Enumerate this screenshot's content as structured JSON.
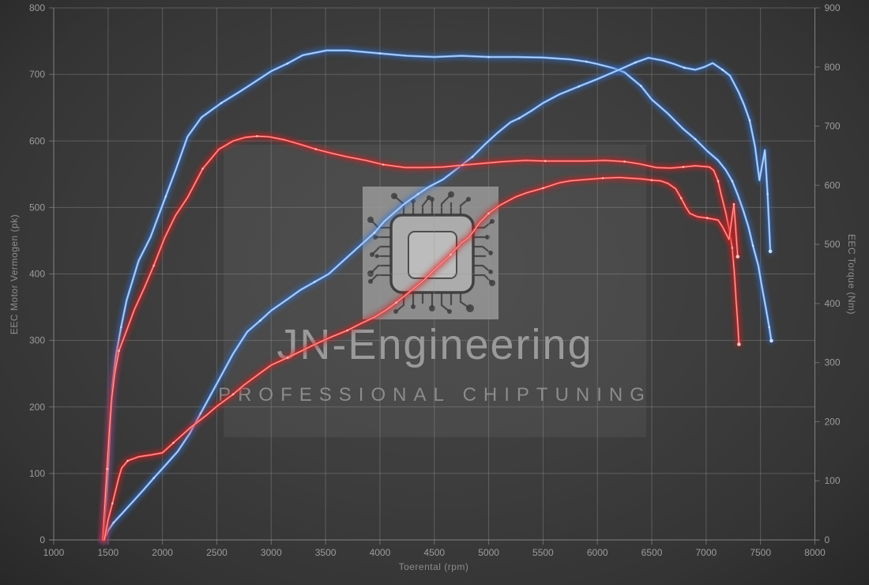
{
  "colors": {
    "background": "#3e3e3e",
    "grid": "#9a9a9a",
    "axis_text": "#9c9c9c",
    "axis_title": "#8d8d8d",
    "blue": "#2f6fd0",
    "blue_core": "#7db1f2",
    "blue_light": "#cfe2ff",
    "red": "#d81f1f",
    "red_core": "#f04040",
    "red_light": "#ffc4c4"
  },
  "watermark": {
    "title": "JN-Engineering",
    "subtitle": "PROFESSIONAL CHIPTUNING",
    "icon": "chip-icon"
  },
  "axes": {
    "x": {
      "title": "Toerental (rpm)",
      "min": 1000,
      "max": 8000,
      "tick_labels": [
        "1000",
        "1500",
        "2000",
        "2500",
        "3000",
        "3500",
        "4000",
        "4500",
        "5000",
        "5500",
        "6000",
        "6500",
        "7000",
        "7500",
        "8000"
      ]
    },
    "y_left": {
      "title": "EEC Motor Vermogen (pk)",
      "min": 0,
      "max": 800,
      "tick_labels": [
        "0",
        "100",
        "200",
        "300",
        "400",
        "500",
        "600",
        "700",
        "800"
      ]
    },
    "y_right": {
      "title": "EEC Torque (Nm)",
      "min": 0,
      "max": 900,
      "tick_labels": [
        "0",
        "100",
        "200",
        "300",
        "400",
        "500",
        "600",
        "700",
        "800",
        "900"
      ]
    }
  },
  "chart_data": {
    "type": "line",
    "title": "",
    "xlabel": "Toerental (rpm)",
    "ylabel_left": "EEC Motor Vermogen (pk)",
    "ylabel_right": "EEC Torque (Nm)",
    "x_range": [
      1000,
      8000
    ],
    "y_left_range": [
      0,
      800
    ],
    "y_right_range": [
      0,
      900
    ],
    "grid": true,
    "legend": "none",
    "series": [
      {
        "name": "torque-blue-run",
        "axis": "right",
        "unit": "Nm",
        "color": "blue",
        "points": [
          [
            1455,
            0
          ],
          [
            1470,
            40
          ],
          [
            1500,
            120
          ],
          [
            1520,
            200
          ],
          [
            1540,
            260
          ],
          [
            1570,
            310
          ],
          [
            1620,
            360
          ],
          [
            1670,
            405
          ],
          [
            1780,
            472
          ],
          [
            1890,
            512
          ],
          [
            2030,
            581
          ],
          [
            2130,
            630
          ],
          [
            2230,
            682
          ],
          [
            2360,
            715
          ],
          [
            2540,
            739
          ],
          [
            2700,
            757
          ],
          [
            2810,
            770
          ],
          [
            3000,
            793
          ],
          [
            3150,
            806
          ],
          [
            3290,
            820
          ],
          [
            3510,
            828
          ],
          [
            3700,
            828
          ],
          [
            4000,
            823
          ],
          [
            4250,
            819
          ],
          [
            4500,
            817
          ],
          [
            4750,
            819
          ],
          [
            5000,
            817
          ],
          [
            5250,
            817
          ],
          [
            5500,
            816
          ],
          [
            5750,
            813
          ],
          [
            5900,
            809
          ],
          [
            6000,
            805
          ],
          [
            6150,
            798
          ],
          [
            6250,
            791
          ],
          [
            6400,
            768
          ],
          [
            6500,
            745
          ],
          [
            6650,
            721
          ],
          [
            6790,
            695
          ],
          [
            6900,
            678
          ],
          [
            7010,
            658
          ],
          [
            7110,
            642
          ],
          [
            7180,
            626
          ],
          [
            7240,
            607
          ],
          [
            7290,
            584
          ],
          [
            7340,
            558
          ],
          [
            7390,
            529
          ],
          [
            7430,
            498
          ],
          [
            7480,
            464
          ],
          [
            7510,
            431
          ],
          [
            7550,
            391
          ],
          [
            7580,
            360
          ],
          [
            7600,
            337
          ]
        ]
      },
      {
        "name": "power-blue-run",
        "axis": "left",
        "unit": "pk",
        "color": "blue",
        "points": [
          [
            1460,
            0
          ],
          [
            1500,
            14
          ],
          [
            1550,
            26
          ],
          [
            1630,
            40
          ],
          [
            1730,
            58
          ],
          [
            1830,
            76
          ],
          [
            1920,
            93
          ],
          [
            2020,
            111
          ],
          [
            2140,
            133
          ],
          [
            2250,
            160
          ],
          [
            2350,
            190
          ],
          [
            2500,
            235
          ],
          [
            2650,
            280
          ],
          [
            2780,
            313
          ],
          [
            2900,
            330
          ],
          [
            3000,
            345
          ],
          [
            3150,
            362
          ],
          [
            3270,
            376
          ],
          [
            3400,
            388
          ],
          [
            3530,
            400
          ],
          [
            3650,
            418
          ],
          [
            3820,
            443
          ],
          [
            3950,
            462
          ],
          [
            4040,
            479
          ],
          [
            4130,
            492
          ],
          [
            4230,
            506
          ],
          [
            4350,
            520
          ],
          [
            4450,
            531
          ],
          [
            4580,
            542
          ],
          [
            4700,
            557
          ],
          [
            4850,
            576
          ],
          [
            4960,
            594
          ],
          [
            5080,
            612
          ],
          [
            5200,
            628
          ],
          [
            5280,
            634
          ],
          [
            5400,
            646
          ],
          [
            5500,
            657
          ],
          [
            5650,
            670
          ],
          [
            5830,
            682
          ],
          [
            6000,
            693
          ],
          [
            6100,
            700
          ],
          [
            6200,
            707
          ],
          [
            6350,
            718
          ],
          [
            6470,
            725
          ],
          [
            6600,
            721
          ],
          [
            6700,
            716
          ],
          [
            6800,
            710
          ],
          [
            6900,
            707
          ],
          [
            6980,
            711
          ],
          [
            7060,
            717
          ],
          [
            7150,
            707
          ],
          [
            7220,
            698
          ],
          [
            7300,
            673
          ],
          [
            7350,
            654
          ],
          [
            7400,
            631
          ],
          [
            7450,
            591
          ],
          [
            7490,
            541
          ],
          [
            7540,
            586
          ],
          [
            7565,
            520
          ],
          [
            7590,
            434
          ]
        ]
      },
      {
        "name": "torque-red-run",
        "axis": "right",
        "unit": "Nm",
        "color": "red",
        "points": [
          [
            1450,
            0
          ],
          [
            1470,
            60
          ],
          [
            1490,
            120
          ],
          [
            1510,
            180
          ],
          [
            1530,
            235
          ],
          [
            1560,
            280
          ],
          [
            1600,
            320
          ],
          [
            1670,
            354
          ],
          [
            1740,
            389
          ],
          [
            1830,
            425
          ],
          [
            1920,
            464
          ],
          [
            2020,
            511
          ],
          [
            2120,
            549
          ],
          [
            2230,
            579
          ],
          [
            2370,
            628
          ],
          [
            2520,
            661
          ],
          [
            2650,
            675
          ],
          [
            2760,
            681
          ],
          [
            2870,
            683
          ],
          [
            2980,
            682
          ],
          [
            3120,
            677
          ],
          [
            3270,
            669
          ],
          [
            3410,
            661
          ],
          [
            3560,
            654
          ],
          [
            3700,
            648
          ],
          [
            3870,
            642
          ],
          [
            4030,
            635
          ],
          [
            4230,
            630
          ],
          [
            4400,
            630
          ],
          [
            4580,
            631
          ],
          [
            4760,
            634
          ],
          [
            4940,
            637
          ],
          [
            5140,
            640
          ],
          [
            5340,
            642
          ],
          [
            5520,
            641
          ],
          [
            5700,
            641
          ],
          [
            5890,
            641
          ],
          [
            6070,
            642
          ],
          [
            6250,
            640
          ],
          [
            6390,
            636
          ],
          [
            6540,
            630
          ],
          [
            6670,
            629
          ],
          [
            6790,
            631
          ],
          [
            6900,
            633
          ],
          [
            7030,
            631
          ],
          [
            7070,
            625
          ],
          [
            7110,
            607
          ],
          [
            7140,
            583
          ],
          [
            7180,
            554
          ],
          [
            7210,
            527
          ],
          [
            7240,
            494
          ],
          [
            7260,
            451
          ],
          [
            7275,
            407
          ],
          [
            7290,
            367
          ],
          [
            7302,
            331
          ]
        ]
      },
      {
        "name": "power-red-run",
        "axis": "left",
        "unit": "pk",
        "color": "red",
        "points": [
          [
            1465,
            0
          ],
          [
            1500,
            30
          ],
          [
            1540,
            55
          ],
          [
            1575,
            78
          ],
          [
            1600,
            95
          ],
          [
            1625,
            108
          ],
          [
            1680,
            119
          ],
          [
            1780,
            125
          ],
          [
            1900,
            128
          ],
          [
            2000,
            131
          ],
          [
            2100,
            146
          ],
          [
            2250,
            168
          ],
          [
            2400,
            187
          ],
          [
            2500,
            201
          ],
          [
            2650,
            219
          ],
          [
            2750,
            233
          ],
          [
            2900,
            251
          ],
          [
            3000,
            263
          ],
          [
            3150,
            274
          ],
          [
            3300,
            286
          ],
          [
            3400,
            294
          ],
          [
            3550,
            305
          ],
          [
            3700,
            315
          ],
          [
            3820,
            325
          ],
          [
            3950,
            335
          ],
          [
            4050,
            345
          ],
          [
            4150,
            357
          ],
          [
            4280,
            374
          ],
          [
            4400,
            390
          ],
          [
            4500,
            406
          ],
          [
            4650,
            429
          ],
          [
            4750,
            447
          ],
          [
            4820,
            455
          ],
          [
            4920,
            478
          ],
          [
            5000,
            491
          ],
          [
            5100,
            503
          ],
          [
            5250,
            516
          ],
          [
            5350,
            522
          ],
          [
            5500,
            529
          ],
          [
            5650,
            537
          ],
          [
            5750,
            540
          ],
          [
            5900,
            542
          ],
          [
            6050,
            544
          ],
          [
            6200,
            545
          ],
          [
            6300,
            544
          ],
          [
            6400,
            543
          ],
          [
            6500,
            541
          ],
          [
            6580,
            540
          ],
          [
            6650,
            536
          ],
          [
            6720,
            528
          ],
          [
            6770,
            514
          ],
          [
            6815,
            500
          ],
          [
            6850,
            491
          ],
          [
            6920,
            486
          ],
          [
            7010,
            484
          ],
          [
            7110,
            481
          ],
          [
            7150,
            471
          ],
          [
            7210,
            452
          ],
          [
            7255,
            505
          ],
          [
            7290,
            426
          ]
        ]
      }
    ]
  }
}
